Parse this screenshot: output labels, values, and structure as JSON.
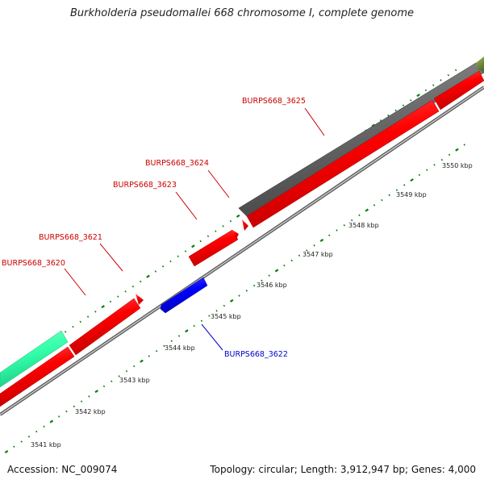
{
  "map": {
    "title": "Burkholderia pseudomallei 668 chromosome I, complete genome",
    "accession": "Accession: NC_009074",
    "summary": "Topology: circular; Length: 3,912,947 bp; Genes: 4,000"
  },
  "scale": {
    "unit": "kbp",
    "labels": [
      "3541 kbp",
      "3542 kbp",
      "3543 kbp",
      "3544 kbp",
      "3545 kbp",
      "3546 kbp",
      "3547 kbp",
      "3548 kbp",
      "3549 kbp",
      "3550 kbp"
    ]
  },
  "genes": [
    {
      "label": "BURPS668_3620",
      "strand": "forward",
      "color": "#ff0000"
    },
    {
      "label": "BURPS668_3621",
      "strand": "forward",
      "color": "#ff0000"
    },
    {
      "label": "BURPS668_3622",
      "strand": "reverse",
      "color": "#0000ff"
    },
    {
      "label": "BURPS668_3623",
      "strand": "forward",
      "color": "#ff0000"
    },
    {
      "label": "BURPS668_3624",
      "strand": "forward",
      "color": "#ff0000"
    },
    {
      "label": "BURPS668_3625",
      "strand": "forward",
      "color": "#ff0000"
    }
  ],
  "colors": {
    "backbone": "#8c8c8c",
    "forward_cds": "#ff0000",
    "reverse_cds": "#0000ff",
    "outer_gray_feature": "#666666",
    "outer_green_feature": "#33ffaa",
    "outer_olive_feature": "#6b8e23",
    "tick_marks": "#008000",
    "forward_label": "#cc0000",
    "reverse_label": "#0000cc"
  }
}
